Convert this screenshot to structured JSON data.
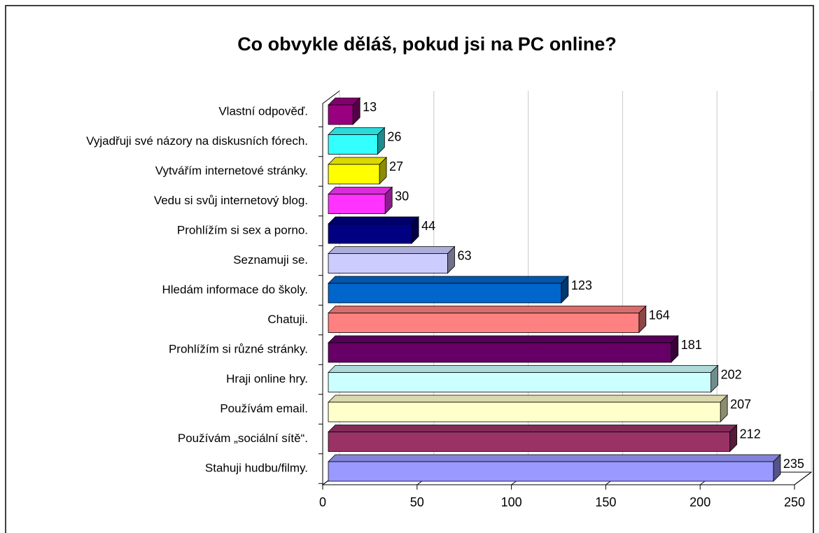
{
  "chart_data": {
    "type": "bar3d_horizontal",
    "title": "Co obvykle děláš, pokud jsi na PC online?",
    "categories": [
      "Vlastní odpověď.",
      "Vyjadřuji své názory na diskusních fórech.",
      "Vytvářím internetové stránky.",
      "Vedu si svůj internetový blog.",
      "Prohlížím si sex a porno.",
      "Seznamuji se.",
      "Hledám informace do školy.",
      "Chatuji.",
      "Prohlížím si různé stránky.",
      "Hraji online hry.",
      "Používám email.",
      "Používám „sociální sítě“.",
      "Stahuji hudbu/filmy."
    ],
    "values": [
      13,
      26,
      27,
      30,
      44,
      63,
      123,
      164,
      181,
      202,
      207,
      212,
      235
    ],
    "colors": [
      "#990080",
      "#33ffff",
      "#ffff00",
      "#ff33ff",
      "#000080",
      "#ccccff",
      "#0066cc",
      "#ff8080",
      "#660066",
      "#ccffff",
      "#ffffcc",
      "#993366",
      "#9999ff"
    ],
    "xlim": [
      0,
      250
    ],
    "xticks": [
      0,
      50,
      100,
      150,
      200,
      250
    ],
    "grid": true
  }
}
